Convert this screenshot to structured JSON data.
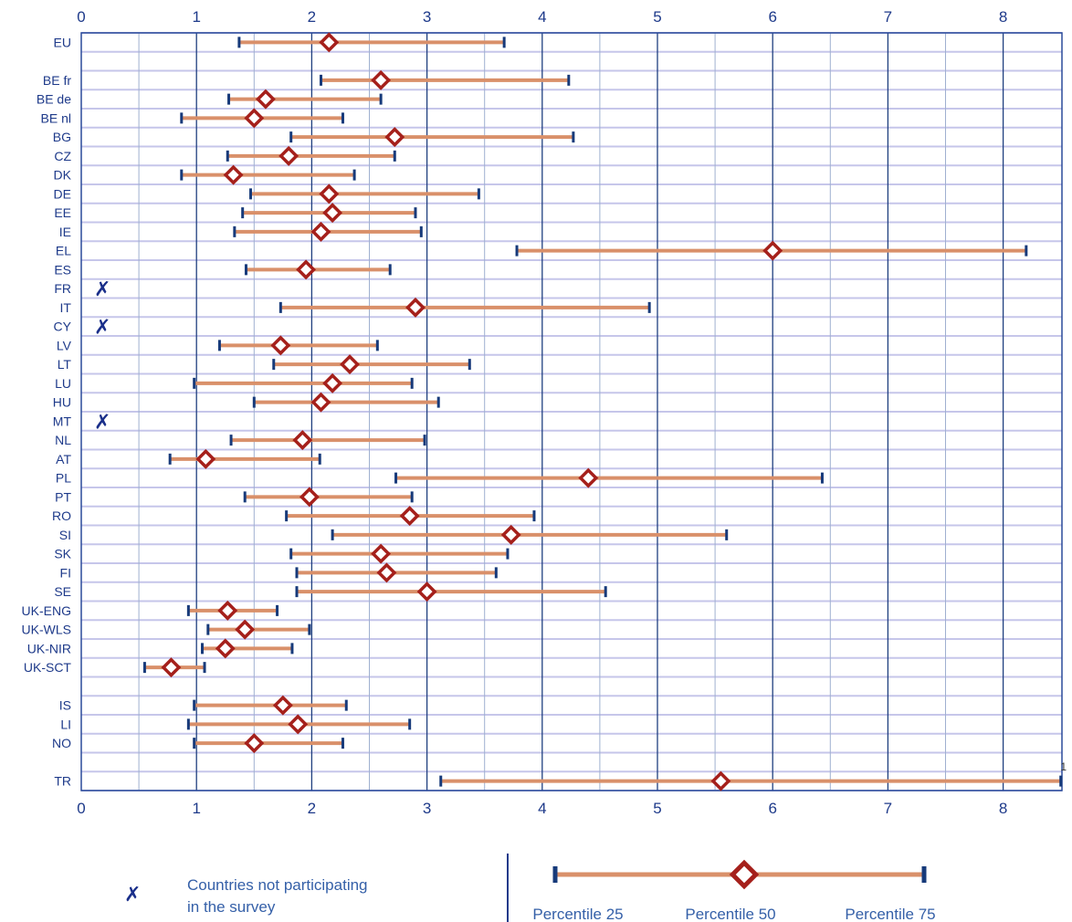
{
  "chart_data": {
    "type": "range",
    "xlim": [
      0,
      8.5
    ],
    "x_ticks": [
      "0",
      "1",
      "2",
      "3",
      "4",
      "5",
      "6",
      "7",
      "8"
    ],
    "grid": "vertical lines every 0.5; horizontal row lines",
    "overflow_note": "1",
    "rows": [
      {
        "label": "EU",
        "p25": 1.37,
        "p50": 2.15,
        "p75": 3.67
      },
      {
        "label": "",
        "gap": true
      },
      {
        "label": "BE fr",
        "p25": 2.08,
        "p50": 2.6,
        "p75": 4.23
      },
      {
        "label": "BE de",
        "p25": 1.28,
        "p50": 1.6,
        "p75": 2.6
      },
      {
        "label": "BE nl",
        "p25": 0.87,
        "p50": 1.5,
        "p75": 2.27
      },
      {
        "label": "BG",
        "p25": 1.82,
        "p50": 2.72,
        "p75": 4.27
      },
      {
        "label": "CZ",
        "p25": 1.27,
        "p50": 1.8,
        "p75": 2.72
      },
      {
        "label": "DK",
        "p25": 0.87,
        "p50": 1.32,
        "p75": 2.37
      },
      {
        "label": "DE",
        "p25": 1.47,
        "p50": 2.15,
        "p75": 3.45
      },
      {
        "label": "EE",
        "p25": 1.4,
        "p50": 2.18,
        "p75": 2.9
      },
      {
        "label": "IE",
        "p25": 1.33,
        "p50": 2.08,
        "p75": 2.95
      },
      {
        "label": "EL",
        "p25": 3.78,
        "p50": 6.0,
        "p75": 8.2
      },
      {
        "label": "ES",
        "p25": 1.43,
        "p50": 1.95,
        "p75": 2.68
      },
      {
        "label": "FR",
        "not_participating": true
      },
      {
        "label": "IT",
        "p25": 1.73,
        "p50": 2.9,
        "p75": 4.93
      },
      {
        "label": "CY",
        "not_participating": true
      },
      {
        "label": "LV",
        "p25": 1.2,
        "p50": 1.73,
        "p75": 2.57
      },
      {
        "label": "LT",
        "p25": 1.67,
        "p50": 2.33,
        "p75": 3.37
      },
      {
        "label": "LU",
        "p25": 0.98,
        "p50": 2.18,
        "p75": 2.87
      },
      {
        "label": "HU",
        "p25": 1.5,
        "p50": 2.08,
        "p75": 3.1
      },
      {
        "label": "MT",
        "not_participating": true
      },
      {
        "label": "NL",
        "p25": 1.3,
        "p50": 1.92,
        "p75": 2.98
      },
      {
        "label": "AT",
        "p25": 0.77,
        "p50": 1.08,
        "p75": 2.07
      },
      {
        "label": "PL",
        "p25": 2.73,
        "p50": 4.4,
        "p75": 6.43
      },
      {
        "label": "PT",
        "p25": 1.42,
        "p50": 1.98,
        "p75": 2.87
      },
      {
        "label": "RO",
        "p25": 1.78,
        "p50": 2.85,
        "p75": 3.93
      },
      {
        "label": "SI",
        "p25": 2.18,
        "p50": 3.73,
        "p75": 5.6
      },
      {
        "label": "SK",
        "p25": 1.82,
        "p50": 2.6,
        "p75": 3.7
      },
      {
        "label": "FI",
        "p25": 1.87,
        "p50": 2.65,
        "p75": 3.6
      },
      {
        "label": "SE",
        "p25": 1.87,
        "p50": 3.0,
        "p75": 4.55
      },
      {
        "label": "UK-ENG",
        "p25": 0.93,
        "p50": 1.27,
        "p75": 1.7
      },
      {
        "label": "UK-WLS",
        "p25": 1.1,
        "p50": 1.42,
        "p75": 1.98
      },
      {
        "label": "UK-NIR",
        "p25": 1.05,
        "p50": 1.25,
        "p75": 1.83
      },
      {
        "label": "UK-SCT",
        "p25": 0.55,
        "p50": 0.78,
        "p75": 1.07
      },
      {
        "label": "",
        "gap": true
      },
      {
        "label": "IS",
        "p25": 0.98,
        "p50": 1.75,
        "p75": 2.3
      },
      {
        "label": "LI",
        "p25": 0.93,
        "p50": 1.88,
        "p75": 2.85
      },
      {
        "label": "NO",
        "p25": 0.98,
        "p50": 1.5,
        "p75": 2.27
      },
      {
        "label": "",
        "gap": true
      },
      {
        "label": "TR",
        "p25": 3.12,
        "p50": 5.55,
        "p75": 8.5,
        "p75_overflow": true
      }
    ]
  },
  "legend": {
    "not_participating_symbol": "✗",
    "not_participating_text": [
      "Countries not participating",
      "in the survey"
    ],
    "p25_label": "Percentile 25",
    "p50_label": "Percentile 50",
    "p75_label": "Percentile 75"
  },
  "colors": {
    "bar": "#d9906a",
    "marker": "#a5201b",
    "whisker": "#173a7a",
    "grid_major": "#1f3f7f",
    "grid_minor": "#9fb0d0",
    "row_line": "#c6c6ea",
    "axis": "#2a4a9a"
  }
}
